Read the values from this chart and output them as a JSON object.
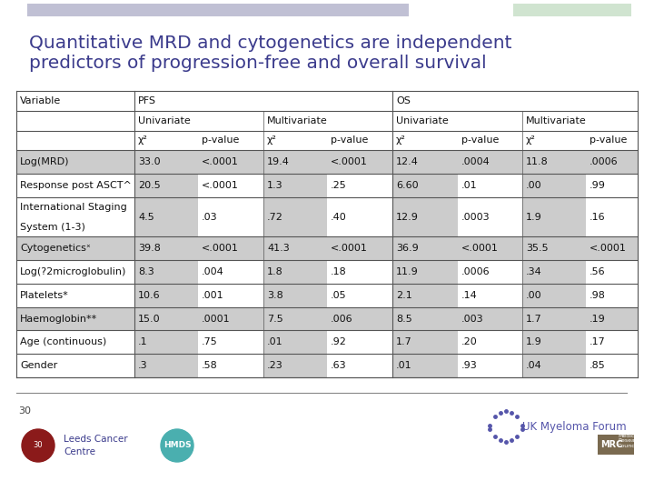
{
  "title_line1": "Quantitative MRD and cytogenetics are independent",
  "title_line2": "predictors of progression-free and overall survival",
  "title_color": "#3B3B8C",
  "background_color": "#FFFFFF",
  "top_bar_left_color": "#C0C0D4",
  "top_bar_right_color": "#D0E4D0",
  "rows": [
    [
      "Log(MRD)",
      "33.0",
      "<.0001",
      "19.4",
      "<.0001",
      "12.4",
      ".0004",
      "11.8",
      ".0006"
    ],
    [
      "Response post ASCT^",
      "20.5",
      "<.0001",
      "1.3",
      ".25",
      "6.60",
      ".01",
      ".00",
      ".99"
    ],
    [
      "International Staging\nSystem (1-3)",
      "4.5",
      ".03",
      ".72",
      ".40",
      "12.9",
      ".0003",
      "1.9",
      ".16"
    ],
    [
      "Cytogeneticsˣ",
      "39.8",
      "<.0001",
      "41.3",
      "<.0001",
      "36.9",
      "<.0001",
      "35.5",
      "<.0001"
    ],
    [
      "Log(?2microglobulin)",
      "8.3",
      ".004",
      "1.8",
      ".18",
      "11.9",
      ".0006",
      ".34",
      ".56"
    ],
    [
      "Platelets*",
      "10.6",
      ".001",
      "3.8",
      ".05",
      "2.1",
      ".14",
      ".00",
      ".98"
    ],
    [
      "Haemoglobin**",
      "15.0",
      ".0001",
      "7.5",
      ".006",
      "8.5",
      ".003",
      "1.7",
      ".19"
    ],
    [
      "Age (continuous)",
      ".1",
      ".75",
      ".01",
      ".92",
      "1.7",
      ".20",
      "1.9",
      ".17"
    ],
    [
      "Gender",
      ".3",
      ".58",
      ".23",
      ".63",
      ".01",
      ".93",
      ".04",
      ".85"
    ]
  ],
  "pval_shade_cols": [
    2,
    4,
    6,
    8
  ],
  "full_shade_rows": [
    0,
    3,
    6
  ],
  "shade_color": "#CCCCCC",
  "number_label": "30",
  "chi2": "χ²",
  "bottom_line_color": "#555555",
  "line_color": "#555555",
  "font_color": "#111111",
  "footer_text": "UK Myeloma Forum",
  "footer_color": "#5555AA"
}
